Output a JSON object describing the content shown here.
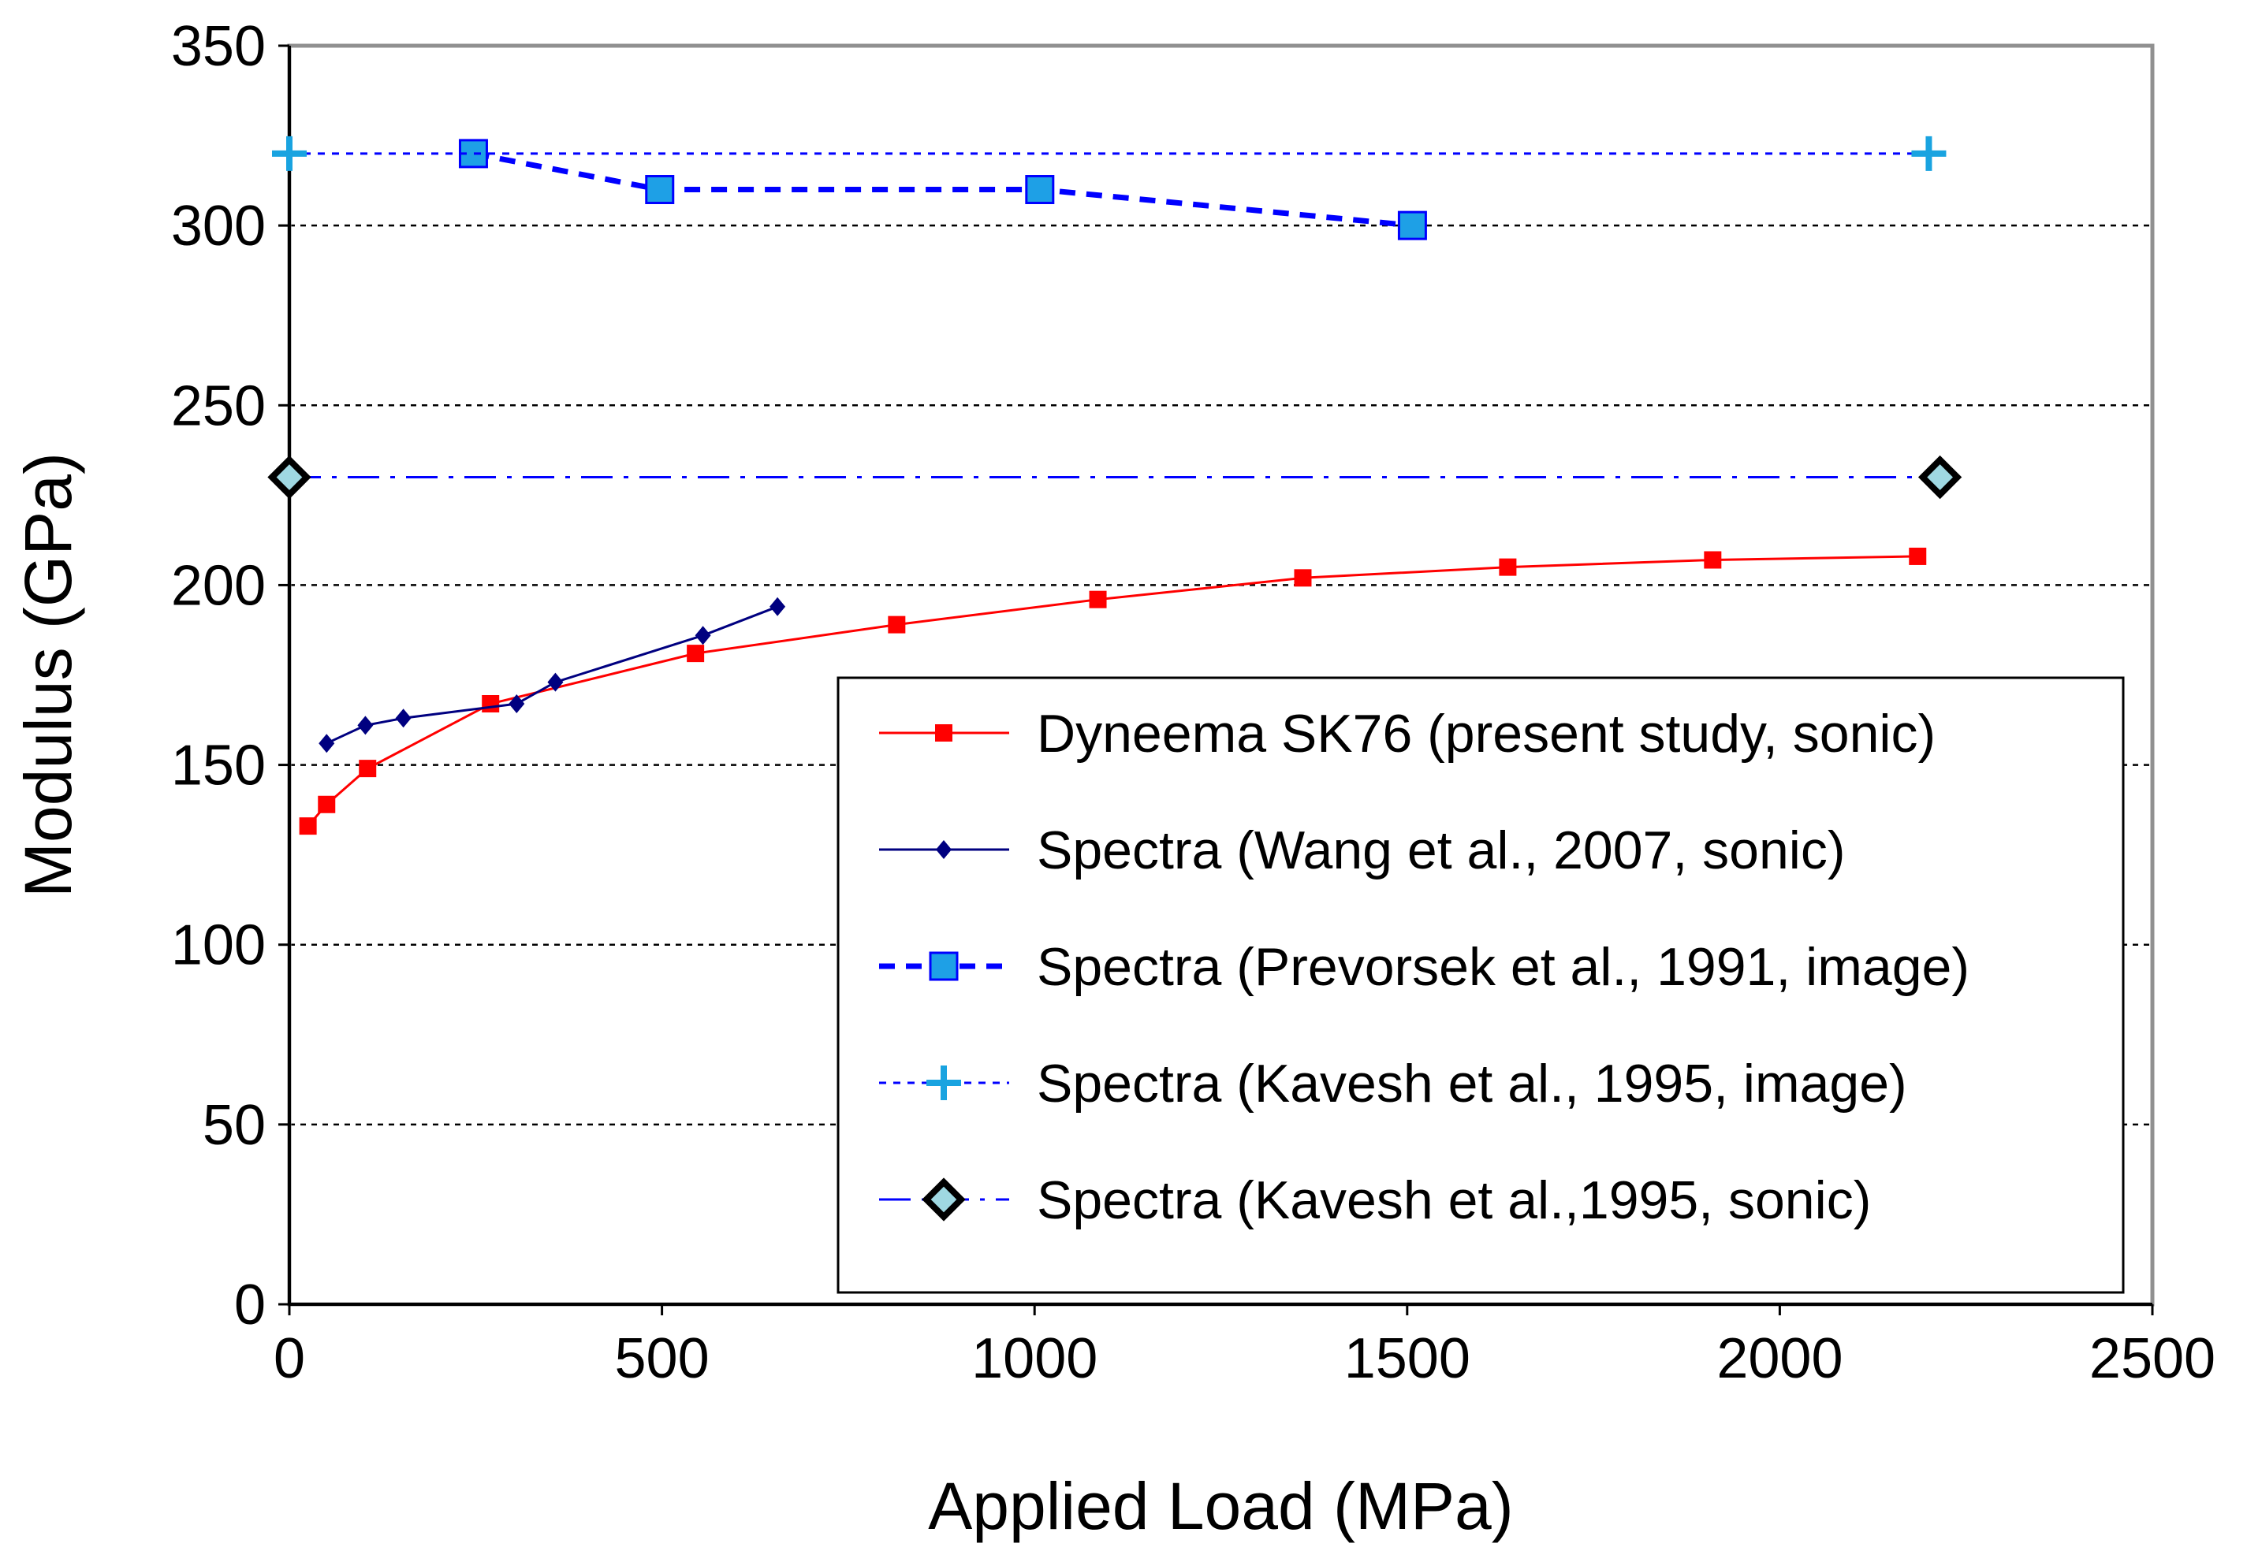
{
  "chart_data": {
    "type": "line",
    "title": "",
    "xlabel": "Applied Load (MPa)",
    "ylabel": "Modulus (GPa)",
    "xlim": [
      0,
      2500
    ],
    "ylim": [
      0,
      350
    ],
    "xticks": [
      0,
      500,
      1000,
      1500,
      2000,
      2500
    ],
    "yticks": [
      0,
      50,
      100,
      150,
      200,
      250,
      300,
      350
    ],
    "grid": "horizontal dashed",
    "legend_position": "lower-right",
    "series": [
      {
        "name": "Dyneema SK76 (present study, sonic)",
        "color": "#ff0000",
        "line": "solid",
        "marker": "square-small",
        "x": [
          25,
          50,
          105,
          270,
          545,
          815,
          1085,
          1360,
          1635,
          1910,
          2185
        ],
        "y": [
          133,
          139,
          149,
          167,
          181,
          189,
          196,
          202,
          205,
          207,
          208
        ]
      },
      {
        "name": "Spectra (Wang et al., 2007, sonic)",
        "color": "#000080",
        "line": "solid",
        "marker": "diamond-small",
        "x": [
          50,
          102,
          153,
          305,
          357,
          555,
          655
        ],
        "y": [
          156,
          161,
          163,
          167,
          173,
          186,
          194
        ]
      },
      {
        "name": "Spectra (Prevorsek et al., 1991, image)",
        "color": "#0000ff",
        "marker_fill": "#1ea0e6",
        "line": "dashed",
        "marker": "square-large",
        "x": [
          247,
          497,
          1007,
          1507
        ],
        "y": [
          320,
          310,
          310,
          300
        ]
      },
      {
        "name": "Spectra (Kavesh et al., 1995, image)",
        "color": "#0000ff",
        "marker_fill": "#19a3e0",
        "line": "dotted",
        "marker": "plus",
        "x": [
          0,
          2200
        ],
        "y": [
          320,
          320
        ]
      },
      {
        "name": "Spectra (Kavesh et al.,1995, sonic)",
        "color": "#0000ff",
        "marker_fill": "#9fd8e2",
        "line": "dashdot",
        "marker": "diamond-outlined",
        "x": [
          0,
          2215
        ],
        "y": [
          230,
          230
        ]
      }
    ]
  }
}
